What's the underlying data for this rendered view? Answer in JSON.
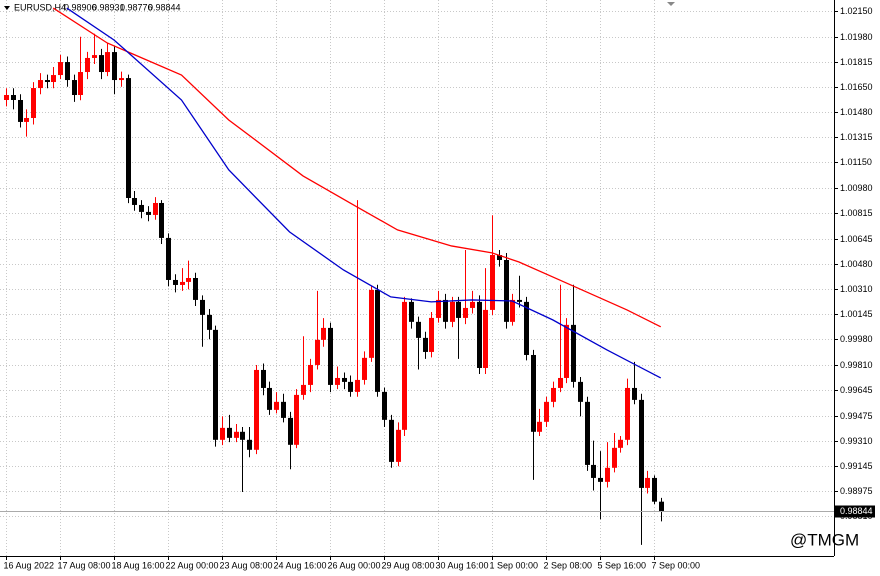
{
  "chart_data": {
    "type": "candlestick",
    "symbol": "EURUSD,H4",
    "watermark": "@TMGM",
    "categories": [
      "16 Aug 2022",
      null,
      null,
      null,
      null,
      null,
      null,
      null,
      "17 Aug 08:00",
      null,
      null,
      null,
      null,
      null,
      null,
      null,
      "18 Aug 16:00",
      null,
      null,
      null,
      null,
      null,
      null,
      null,
      "22 Aug 00:00",
      null,
      null,
      null,
      null,
      null,
      null,
      null,
      "23 Aug 08:00",
      null,
      null,
      null,
      null,
      null,
      null,
      null,
      "24 Aug 16:00",
      null,
      null,
      null,
      null,
      null,
      null,
      null,
      "26 Aug 00:00",
      null,
      null,
      null,
      null,
      null,
      null,
      null,
      "29 Aug 08:00",
      null,
      null,
      null,
      null,
      null,
      null,
      null,
      "30 Aug 16:00",
      null,
      null,
      null,
      null,
      null,
      null,
      null,
      "1 Sep 00:00",
      null,
      null,
      null,
      null,
      null,
      null,
      null,
      "2 Sep 08:00",
      null,
      null,
      null,
      null,
      null,
      null,
      null,
      "5 Sep 16:00",
      null,
      null,
      null,
      null,
      null,
      null,
      null,
      "7 Sep 00:00",
      null
    ],
    "open": [
      1.01562,
      1.01595,
      1.01562,
      1.01417,
      1.01443,
      1.01641,
      1.01694,
      1.01681,
      1.01727,
      1.01813,
      1.01694,
      1.01595,
      1.01747,
      1.0184,
      1.01859,
      1.01747,
      1.01879,
      1.01694,
      1.01707,
      1.00914,
      1.00868,
      1.00822,
      1.00802,
      1.00881,
      1.0065,
      1.00372,
      1.00339,
      1.00359,
      1.00385,
      1.0024,
      1.00141,
      1.00042,
      0.99315,
      0.99394,
      0.99328,
      0.99368,
      0.99315,
      0.99249,
      0.99777,
      0.99658,
      0.99513,
      0.99566,
      0.9946,
      0.99282,
      0.99612,
      0.99678,
      0.9981,
      0.99976,
      1.00055,
      0.99678,
      0.99724,
      0.99698,
      0.99632,
      0.99711,
      0.99857,
      1.00306,
      0.99632,
      0.99447,
      0.99169,
      0.99381,
      1.00227,
      1.00095,
      0.99989,
      0.99896,
      1.00121,
      1.0024,
      1.00095,
      1.00227,
      1.00121,
      1.00187,
      1.00227,
      0.9979,
      1.00174,
      1.00537,
      1.00504,
      1.00095,
      1.0024,
      1.00227,
      0.99876,
      0.99368,
      0.99434,
      0.99566,
      0.99658,
      0.99724,
      1.00075,
      0.99698,
      0.99566,
      0.99149,
      0.99063,
      0.99037,
      0.9913,
      0.99262,
      0.99315,
      0.99658,
      0.99579,
      0.98997,
      0.99063,
      0.98906
    ],
    "high": [
      1.0164,
      1.0164,
      1.016,
      1.015,
      1.0168,
      1.0174,
      1.0173,
      1.0178,
      1.0186,
      1.0185,
      1.0173,
      1.0198,
      1.0188,
      1.02,
      1.019,
      1.0194,
      1.0192,
      1.0175,
      1.0173,
      1.0096,
      1.009,
      1.0086,
      1.0092,
      1.009,
      1.0068,
      1.0041,
      1.0045,
      1.005,
      1.0042,
      1.0027,
      1.0018,
      1.0007,
      0.9947,
      0.9948,
      0.9942,
      0.994,
      0.994,
      0.9981,
      0.9982,
      0.997,
      0.9963,
      0.9962,
      0.995,
      0.9965,
      1.0,
      0.9985,
      1.003,
      1.0012,
      1.0009,
      0.998,
      0.9976,
      0.9974,
      1.009,
      0.999,
      1.0033,
      1.0034,
      0.9966,
      0.9948,
      0.9943,
      1.0026,
      1.0025,
      1.0013,
      1.0003,
      1.0016,
      1.003,
      1.0028,
      1.0026,
      1.0026,
      1.0057,
      1.003,
      1.0027,
      1.0045,
      1.008,
      1.0057,
      1.0055,
      1.0028,
      1.004,
      1.0026,
      0.9991,
      0.9952,
      0.996,
      0.997,
      1.0034,
      1.0012,
      1.0034,
      0.9973,
      0.996,
      0.9931,
      0.9924,
      0.993,
      0.9936,
      0.9934,
      0.9972,
      0.9983,
      0.9962,
      0.9911,
      0.9908,
      0.98931
    ],
    "low": [
      1.0152,
      1.015,
      1.0138,
      1.0132,
      1.014,
      1.016,
      1.0164,
      1.0164,
      1.017,
      1.0165,
      1.0155,
      1.0156,
      1.017,
      1.018,
      1.017,
      1.0172,
      1.016,
      1.0165,
      1.0088,
      1.0083,
      1.0078,
      1.0076,
      1.0077,
      1.0061,
      1.0033,
      1.0029,
      1.003,
      1.0031,
      1.002,
      0.9993,
      0.9998,
      0.9927,
      0.9928,
      0.993,
      0.993,
      0.9897,
      0.992,
      0.9922,
      0.9961,
      0.9948,
      0.9949,
      0.9943,
      0.9912,
      0.9926,
      0.9958,
      0.9963,
      0.9978,
      0.9993,
      0.9963,
      0.9965,
      0.9965,
      0.996,
      0.996,
      0.9968,
      0.9983,
      0.996,
      0.994,
      0.9913,
      0.9914,
      0.9934,
      1.0005,
      0.9978,
      0.9985,
      0.9986,
      1.0009,
      1.0005,
      1.0006,
      0.9985,
      1.0008,
      1.0015,
      0.9975,
      0.9975,
      1.0014,
      1.0046,
      1.0005,
      1.0007,
      1.0019,
      0.9984,
      0.9905,
      0.9934,
      0.994,
      0.9953,
      0.9963,
      0.9969,
      0.9966,
      0.9947,
      0.9911,
      0.9898,
      0.9879,
      0.99,
      0.991,
      0.9923,
      0.9928,
      0.9955,
      0.9862,
      0.9896,
      0.9889,
      0.98776
    ],
    "close": [
      1.01595,
      1.01562,
      1.01417,
      1.01443,
      1.01641,
      1.01694,
      1.01681,
      1.01727,
      1.01813,
      1.01694,
      1.01595,
      1.01747,
      1.0184,
      1.01859,
      1.01747,
      1.01879,
      1.01694,
      1.01707,
      1.00914,
      1.00868,
      1.00822,
      1.00802,
      1.00881,
      1.0065,
      1.00372,
      1.00339,
      1.00359,
      1.00385,
      1.0024,
      1.00141,
      1.00042,
      0.99315,
      0.99394,
      0.99328,
      0.99368,
      0.99315,
      0.99249,
      0.99777,
      0.99658,
      0.99513,
      0.99566,
      0.9946,
      0.99282,
      0.99612,
      0.99678,
      0.9981,
      0.99976,
      1.00055,
      0.99678,
      0.99724,
      0.99698,
      0.99632,
      0.99711,
      0.99857,
      1.00306,
      0.99632,
      0.99447,
      0.99169,
      0.99381,
      1.00227,
      1.00095,
      0.99989,
      0.99896,
      1.00121,
      1.0024,
      1.00095,
      1.00227,
      1.00121,
      1.00187,
      1.00227,
      0.9979,
      1.00174,
      1.00537,
      1.00504,
      1.00095,
      1.0024,
      1.00227,
      0.99876,
      0.99368,
      0.99434,
      0.99566,
      0.99658,
      0.99724,
      1.00075,
      0.99698,
      0.99566,
      0.99149,
      0.99063,
      0.99037,
      0.9913,
      0.99262,
      0.99315,
      0.99658,
      0.99579,
      0.98997,
      0.99063,
      0.98906,
      0.98844
    ],
    "up_color": "#ff0000",
    "down_color": "#000000",
    "series": [
      {
        "color": "#ff0000",
        "x": [
          7,
          15,
          26,
          33,
          44,
          52,
          58,
          66,
          72,
          76,
          82,
          88,
          92,
          97
        ],
        "values": [
          1.0217,
          1.01939,
          1.01727,
          1.0143,
          1.0106,
          1.00855,
          1.00703,
          1.00597,
          1.00551,
          1.00491,
          1.00372,
          1.00253,
          1.00174,
          1.00062
        ]
      },
      {
        "color": "#0000cc",
        "x": [
          9,
          16,
          26,
          33,
          42,
          50,
          57,
          63,
          69,
          75,
          81,
          89,
          97
        ],
        "values": [
          1.0217,
          1.01959,
          1.01562,
          1.011,
          1.0069,
          1.00438,
          1.0026,
          1.00227,
          1.0024,
          1.00233,
          1.00108,
          0.9991,
          0.99724
        ]
      }
    ],
    "ylim": [
      0.9856,
      1.0221
    ],
    "yticks": [
      {
        "value": 1.0215,
        "label": "1.02150"
      },
      {
        "value": 1.0198,
        "label": "1.01980"
      },
      1.01815,
      {
        "value": 1.0165,
        "label": "1.01650"
      },
      {
        "value": 1.0148,
        "label": "1.01480"
      },
      1.01315,
      {
        "value": 1.0115,
        "label": "1.01150"
      },
      {
        "value": 1.0098,
        "label": "1.00980"
      },
      1.00815,
      1.00645,
      {
        "value": 1.0048,
        "label": "1.00480"
      },
      {
        "value": 1.0031,
        "label": "1.00310"
      },
      1.00145,
      {
        "value": 0.9998,
        "label": "0.99980"
      },
      {
        "value": 0.9981,
        "label": "0.99810"
      },
      0.99645,
      0.99475,
      {
        "value": 0.9931,
        "label": "0.99310"
      },
      0.99145,
      0.98975,
      {
        "value": 0.9881,
        "label": "0.98810"
      }
    ],
    "grid": true
  }
}
